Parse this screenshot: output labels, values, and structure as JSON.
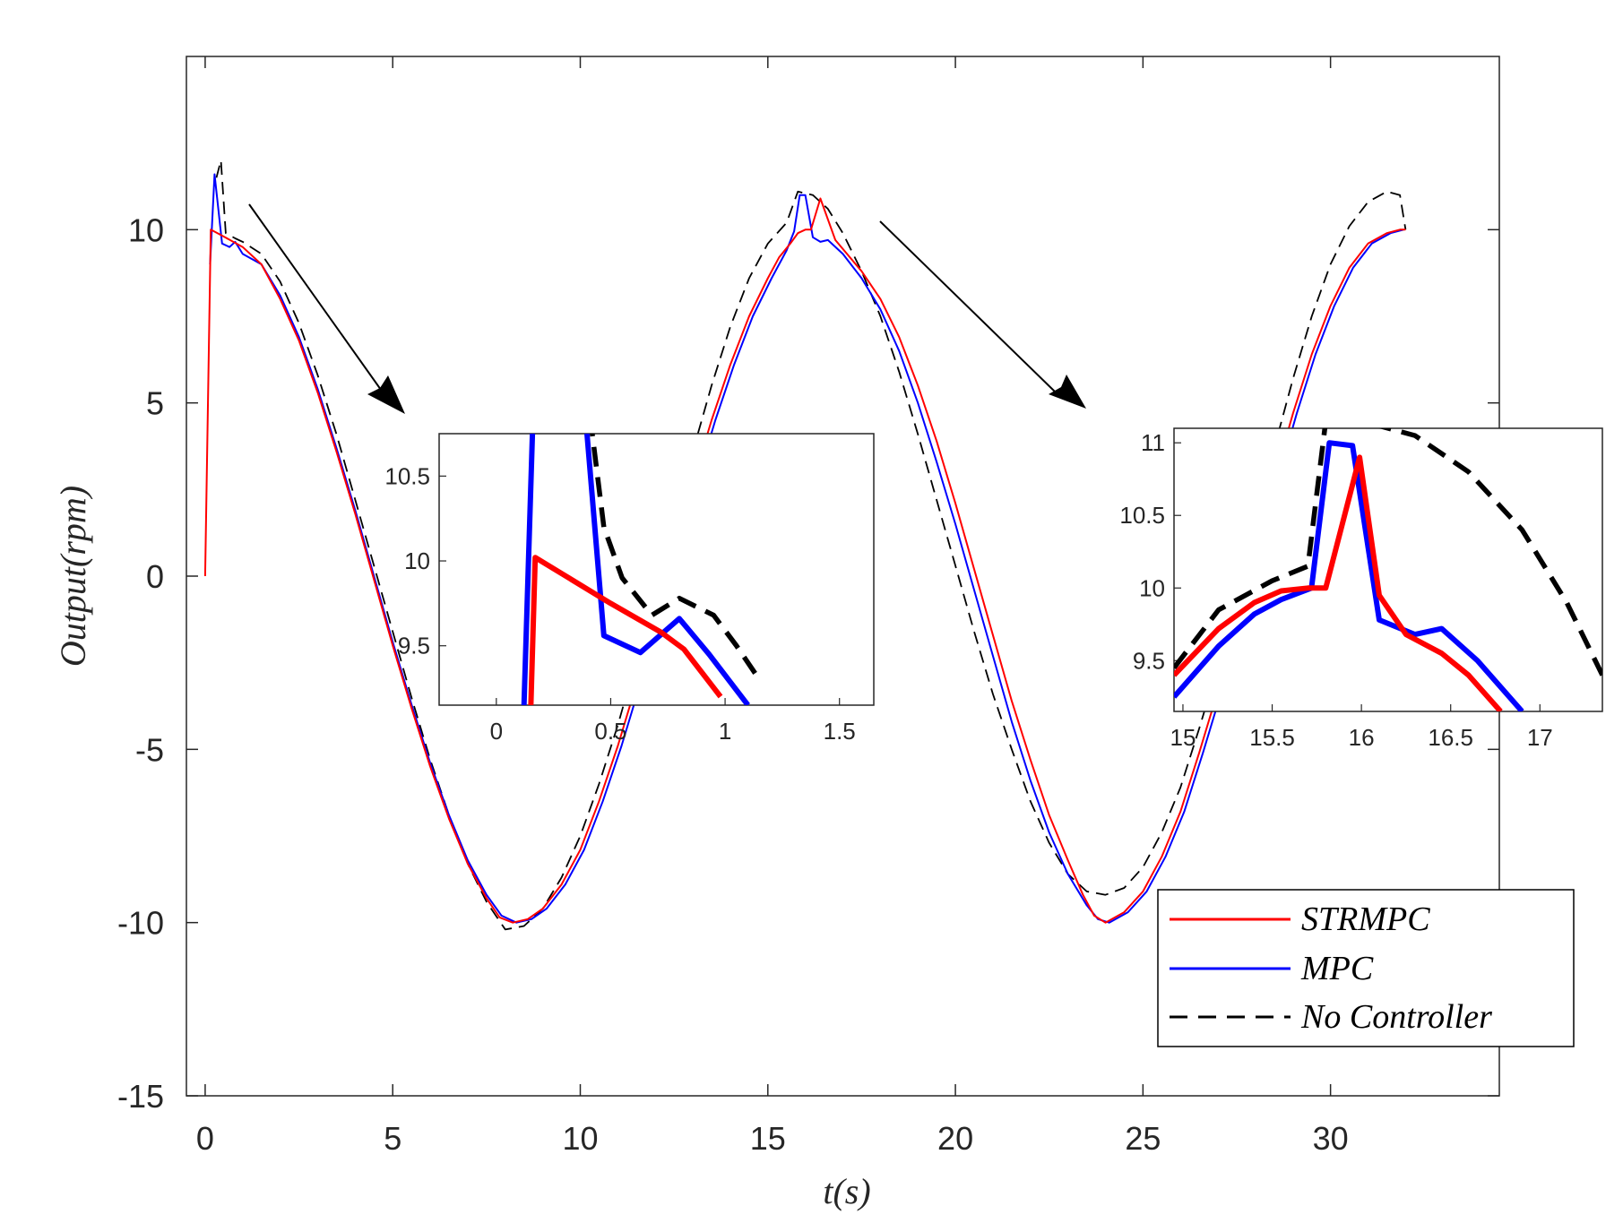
{
  "chart_data": {
    "type": "line",
    "title": "",
    "xlabel": "t(s)",
    "ylabel": "Output(rpm)",
    "xlim": [
      -0.5,
      34.5
    ],
    "ylim": [
      -15,
      15
    ],
    "xticks": [
      "0",
      "5",
      "10",
      "15",
      "20",
      "25",
      "30"
    ],
    "yticks": [
      "10",
      "5",
      "0",
      "-5",
      "-10",
      "-15"
    ],
    "grid": false,
    "legend": {
      "position": "bottom-right",
      "entries": [
        "STRMPC",
        "MPC",
        "No Controller"
      ]
    },
    "colors": {
      "strmpc": "#ff0000",
      "mpc": "#0000ff",
      "nocontroller": "#000000"
    },
    "series": [
      {
        "name": "STRMPC",
        "style": "solid",
        "x": [
          0,
          0.15,
          0.5,
          1.0,
          1.5,
          2.0,
          2.5,
          3.0,
          3.5,
          4.0,
          4.5,
          5.0,
          5.5,
          6.0,
          6.5,
          7.0,
          7.5,
          7.85,
          8.2,
          8.6,
          9.0,
          9.5,
          10.0,
          10.5,
          11.0,
          11.5,
          12.0,
          12.5,
          13.0,
          13.5,
          14.0,
          14.5,
          15.0,
          15.3,
          15.6,
          15.8,
          16.0,
          16.15,
          16.4,
          16.8,
          17.5,
          18.0,
          18.5,
          19.0,
          19.5,
          20.0,
          20.5,
          21.0,
          21.5,
          22.0,
          22.5,
          23.0,
          23.4,
          23.7,
          24.0,
          24.5,
          25.0,
          25.5,
          26.0,
          26.5,
          27.0,
          27.5,
          28.0,
          28.5,
          29.0,
          29.5,
          30.0,
          30.5,
          31.0,
          31.5,
          31.85,
          32.0
        ],
        "y": [
          0,
          10.0,
          9.8,
          9.5,
          9.0,
          8.0,
          6.8,
          5.3,
          3.6,
          1.8,
          -0.1,
          -2.0,
          -3.8,
          -5.5,
          -7.0,
          -8.3,
          -9.3,
          -9.85,
          -10.0,
          -9.9,
          -9.6,
          -8.9,
          -7.9,
          -6.5,
          -4.9,
          -3.1,
          -1.2,
          0.8,
          2.7,
          4.5,
          6.1,
          7.5,
          8.6,
          9.2,
          9.6,
          9.9,
          10.0,
          10.0,
          10.9,
          9.7,
          8.8,
          8.0,
          6.9,
          5.5,
          3.9,
          2.1,
          0.2,
          -1.7,
          -3.6,
          -5.3,
          -6.9,
          -8.2,
          -9.2,
          -9.8,
          -10.0,
          -9.7,
          -9.1,
          -8.1,
          -6.8,
          -5.1,
          -3.3,
          -1.3,
          0.8,
          2.8,
          4.7,
          6.4,
          7.8,
          8.9,
          9.6,
          9.9,
          10.0,
          10.0
        ]
      },
      {
        "name": "MPC",
        "style": "solid",
        "x": [
          0.13,
          0.25,
          0.45,
          0.65,
          0.8,
          1.0,
          1.5,
          2.0,
          2.5,
          3.0,
          3.5,
          4.0,
          4.5,
          5.0,
          5.5,
          6.0,
          6.5,
          7.0,
          7.5,
          7.9,
          8.3,
          8.7,
          9.1,
          9.6,
          10.1,
          10.6,
          11.1,
          11.6,
          12.1,
          12.6,
          13.1,
          13.6,
          14.1,
          14.6,
          15.1,
          15.5,
          15.7,
          15.85,
          16.0,
          16.2,
          16.4,
          16.6,
          17.0,
          17.5,
          18.0,
          18.5,
          19.0,
          19.5,
          20.0,
          20.5,
          21.0,
          21.5,
          22.0,
          22.5,
          23.0,
          23.5,
          23.8,
          24.1,
          24.6,
          25.1,
          25.6,
          26.1,
          26.6,
          27.1,
          27.6,
          28.1,
          28.6,
          29.1,
          29.6,
          30.1,
          30.6,
          31.1,
          31.6,
          31.95
        ],
        "y": [
          9.0,
          11.6,
          9.6,
          9.5,
          9.65,
          9.3,
          9.0,
          8.1,
          6.9,
          5.4,
          3.7,
          1.9,
          0.0,
          -1.9,
          -3.7,
          -5.4,
          -6.9,
          -8.2,
          -9.2,
          -9.8,
          -10.0,
          -9.9,
          -9.6,
          -8.9,
          -7.9,
          -6.5,
          -4.9,
          -3.1,
          -1.2,
          0.8,
          2.7,
          4.5,
          6.1,
          7.5,
          8.6,
          9.4,
          9.95,
          11.0,
          11.0,
          9.78,
          9.65,
          9.7,
          9.3,
          8.6,
          7.7,
          6.5,
          5.0,
          3.3,
          1.5,
          -0.4,
          -2.3,
          -4.2,
          -5.9,
          -7.4,
          -8.6,
          -9.5,
          -9.9,
          -10.0,
          -9.7,
          -9.1,
          -8.1,
          -6.8,
          -5.1,
          -3.3,
          -1.3,
          0.8,
          2.8,
          4.7,
          6.4,
          7.8,
          8.9,
          9.6,
          9.9,
          10.0
        ]
      },
      {
        "name": "No Controller",
        "style": "dashed",
        "x": [
          0.3,
          0.42,
          0.55,
          0.8,
          1.0,
          1.5,
          2.0,
          2.5,
          3.0,
          3.5,
          4.0,
          4.5,
          5.0,
          5.5,
          6.0,
          6.5,
          7.0,
          7.5,
          8.0,
          8.5,
          9.0,
          9.5,
          10.0,
          10.5,
          11.0,
          11.5,
          12.0,
          12.5,
          13.0,
          13.5,
          14.0,
          14.5,
          15.0,
          15.5,
          15.8,
          16.2,
          16.6,
          17.0,
          17.5,
          18.0,
          18.5,
          19.0,
          19.5,
          20.0,
          20.5,
          21.0,
          21.5,
          22.0,
          22.5,
          23.0,
          23.5,
          24.0,
          24.5,
          25.0,
          25.5,
          26.0,
          26.5,
          27.0,
          27.5,
          28.0,
          28.5,
          29.0,
          29.5,
          30.0,
          30.5,
          31.0,
          31.5,
          31.85,
          32.0
        ],
        "y": [
          11.5,
          12.0,
          9.9,
          9.75,
          9.65,
          9.3,
          8.5,
          7.3,
          5.8,
          4.1,
          2.2,
          0.3,
          -1.6,
          -3.5,
          -5.3,
          -6.9,
          -8.3,
          -9.4,
          -10.2,
          -10.1,
          -9.6,
          -8.7,
          -7.5,
          -6.0,
          -4.3,
          -2.4,
          -0.4,
          1.6,
          3.6,
          5.5,
          7.2,
          8.6,
          9.6,
          10.2,
          11.1,
          11.0,
          10.6,
          9.9,
          8.8,
          7.5,
          5.9,
          4.1,
          2.2,
          0.3,
          -1.6,
          -3.4,
          -5.0,
          -6.5,
          -7.7,
          -8.6,
          -9.1,
          -9.2,
          -9.0,
          -8.4,
          -7.4,
          -6.1,
          -4.4,
          -2.6,
          -0.5,
          1.6,
          3.7,
          5.7,
          7.5,
          9.0,
          10.1,
          10.8,
          11.1,
          11.0,
          10.0
        ]
      }
    ],
    "insets": [
      {
        "name": "inset-left",
        "xlim": [
          -0.25,
          1.65
        ],
        "ylim": [
          9.15,
          10.75
        ],
        "xticks": [
          0,
          0.5,
          1,
          1.5
        ],
        "xtick_labels": [
          "0",
          "0.5",
          "1",
          "1.5"
        ],
        "yticks": [
          10.5,
          10,
          9.5
        ],
        "ytick_labels": [
          "10.5",
          "10",
          "9.5"
        ],
        "series": [
          {
            "name": "STRMPC",
            "x": [
              0.15,
              0.17,
              0.5,
              0.72,
              0.82,
              0.98
            ],
            "y": [
              9.1,
              10.02,
              9.75,
              9.58,
              9.48,
              9.2
            ]
          },
          {
            "name": "MPC",
            "x": [
              0.12,
              0.16,
              0.39,
              0.47,
              0.63,
              0.8,
              0.93,
              1.1
            ],
            "y": [
              9.1,
              10.85,
              10.85,
              9.56,
              9.46,
              9.66,
              9.45,
              9.15
            ]
          },
          {
            "name": "No Controller",
            "x": [
              0.41,
              0.47,
              0.55,
              0.68,
              0.8,
              0.95,
              1.05,
              1.15
            ],
            "y": [
              10.85,
              10.2,
              9.9,
              9.68,
              9.78,
              9.68,
              9.5,
              9.3
            ]
          }
        ]
      },
      {
        "name": "inset-right",
        "xlim": [
          14.95,
          17.35
        ],
        "ylim": [
          9.15,
          11.1
        ],
        "xticks": [
          15,
          15.5,
          16,
          16.5,
          17
        ],
        "xtick_labels": [
          "15",
          "15.5",
          "16",
          "16.5",
          "17"
        ],
        "yticks": [
          11,
          10.5,
          10,
          9.5
        ],
        "ytick_labels": [
          "11",
          "10.5",
          "10",
          "9.5"
        ],
        "series": [
          {
            "name": "STRMPC",
            "x": [
              14.95,
              15.2,
              15.4,
              15.55,
              15.7,
              15.8,
              15.99,
              16.1,
              16.25,
              16.45,
              16.6,
              16.78
            ],
            "y": [
              9.4,
              9.72,
              9.9,
              9.98,
              10.0,
              10.0,
              10.9,
              9.95,
              9.68,
              9.55,
              9.4,
              9.15
            ]
          },
          {
            "name": "MPC",
            "x": [
              14.95,
              15.2,
              15.4,
              15.55,
              15.72,
              15.82,
              15.95,
              16.1,
              16.3,
              16.45,
              16.65,
              16.9
            ],
            "y": [
              9.25,
              9.6,
              9.82,
              9.92,
              10.0,
              11.0,
              10.98,
              9.78,
              9.68,
              9.72,
              9.5,
              9.15
            ]
          },
          {
            "name": "No Controller",
            "x": [
              14.95,
              15.2,
              15.5,
              15.7,
              15.8,
              16.0,
              16.3,
              16.6,
              16.9,
              17.15,
              17.35
            ],
            "y": [
              9.45,
              9.85,
              10.05,
              10.15,
              11.15,
              11.15,
              11.05,
              10.8,
              10.4,
              9.9,
              9.4
            ]
          }
        ]
      }
    ]
  }
}
